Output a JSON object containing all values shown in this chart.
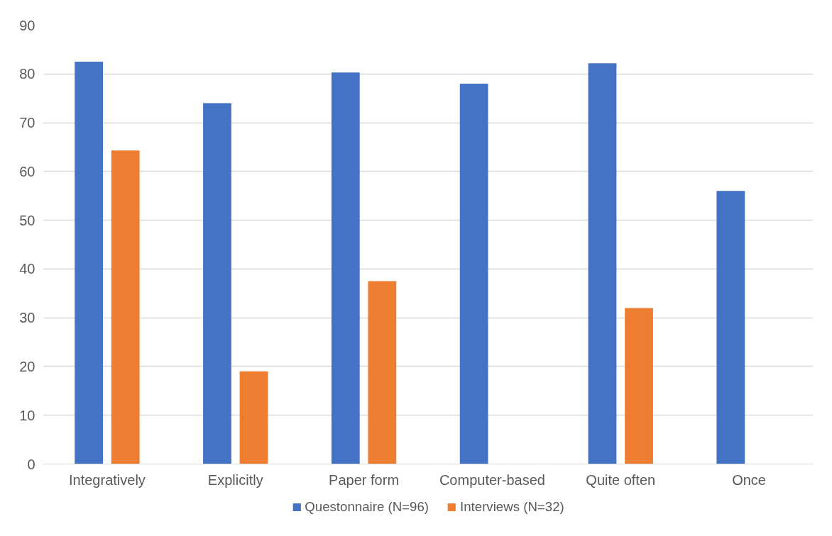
{
  "chart_data": {
    "type": "bar",
    "categories": [
      "Integratively",
      "Explicitly",
      "Paper form",
      "Computer-based",
      "Quite often",
      "Once"
    ],
    "series": [
      {
        "name": "Questonnaire (N=96)",
        "color": "#4472c4",
        "values": [
          82.5,
          74,
          80.3,
          78,
          82.2,
          56
        ]
      },
      {
        "name": "Interviews (N=32)",
        "color": "#ed7d31",
        "values": [
          64.3,
          19,
          37.5,
          0,
          32,
          0
        ]
      }
    ],
    "ylim": [
      0,
      90
    ],
    "yticks": [
      0,
      10,
      20,
      30,
      40,
      50,
      60,
      70,
      80,
      90
    ],
    "grid": "y",
    "legend": "bottom"
  }
}
